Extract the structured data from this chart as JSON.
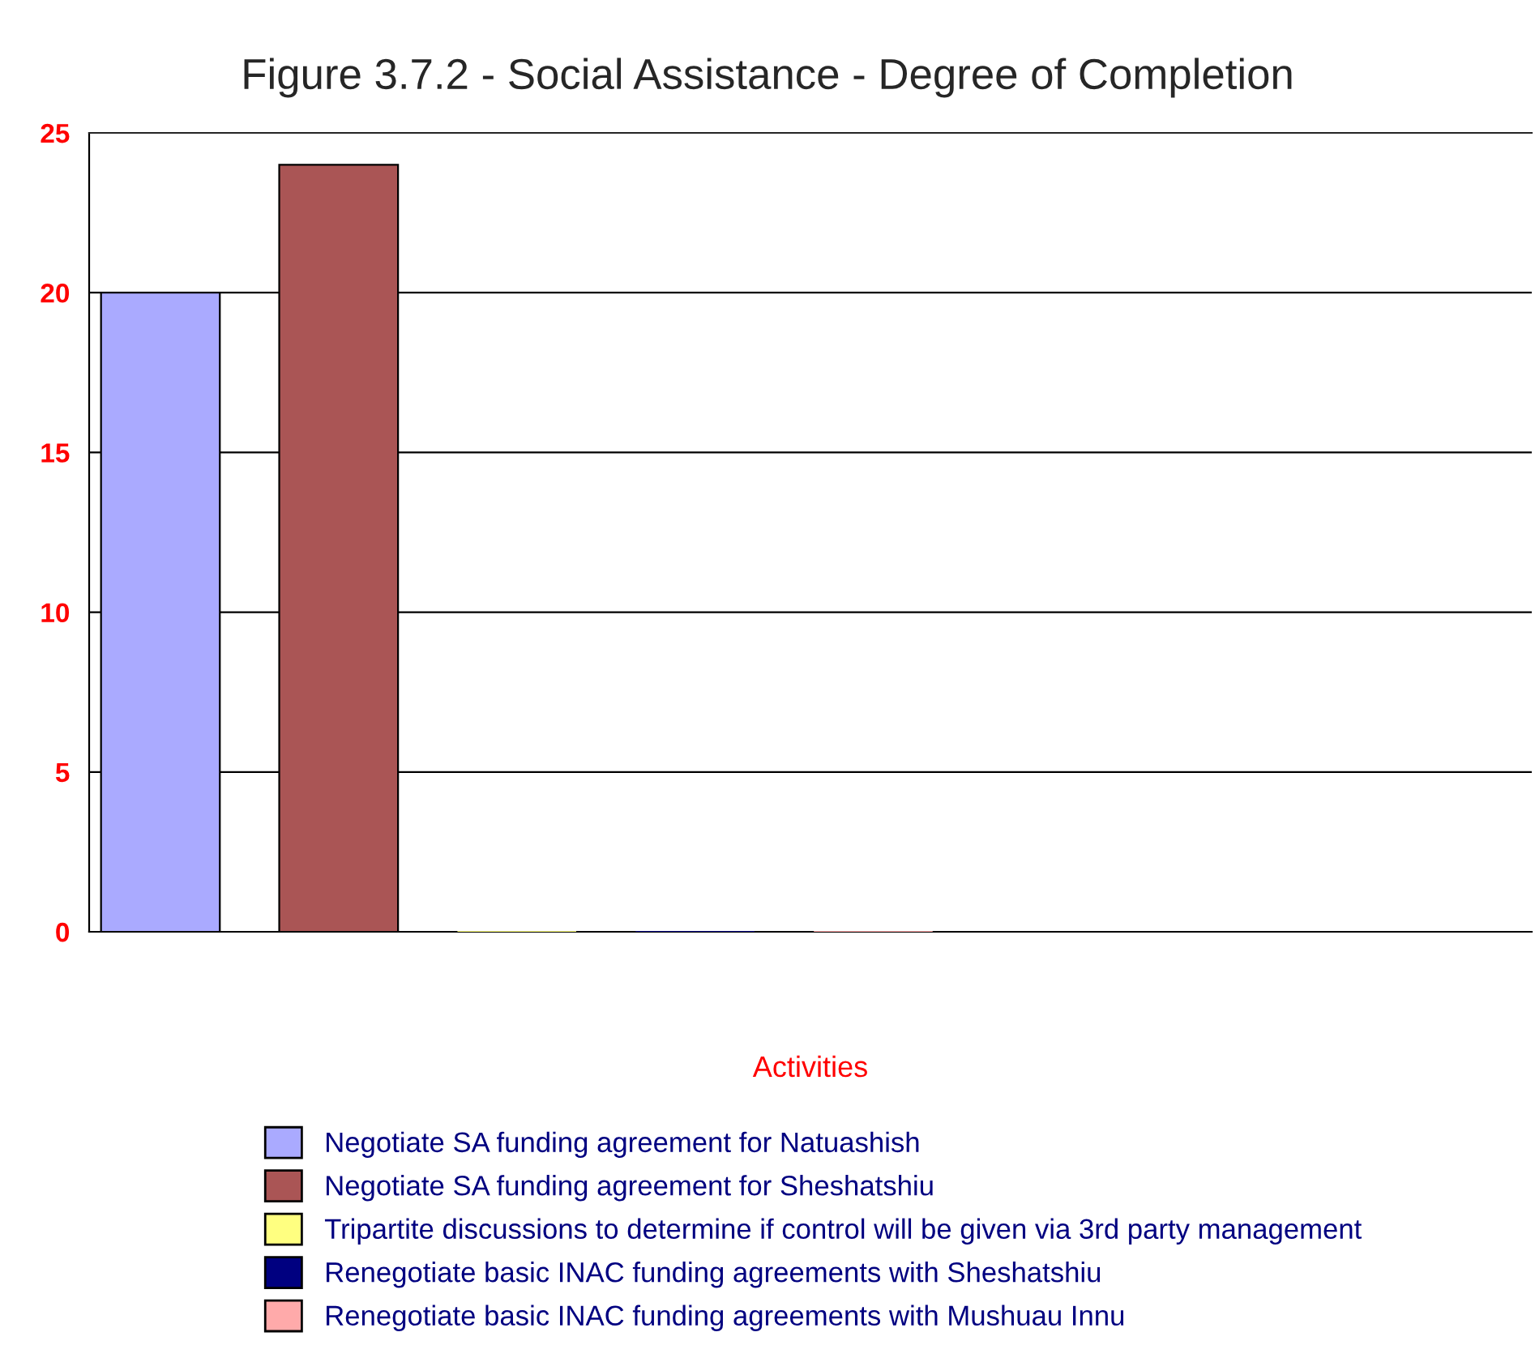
{
  "chart_data": {
    "type": "bar",
    "title": "Figure 3.7.2 - Social Assistance - Degree of Completion",
    "xlabel": "Activities",
    "categories": [
      null
    ],
    "series": [
      {
        "name": "Negotiate SA funding agreement for Natuashish",
        "color": "#aaaaff",
        "values": [
          20
        ]
      },
      {
        "name": "Negotiate SA funding agreement for Sheshatshiu",
        "color": "#aa5555",
        "values": [
          24
        ]
      },
      {
        "name": "Tripartite discussions to determine if control will be given via 3rd party management",
        "color": "#ffff80",
        "values": [
          0
        ]
      },
      {
        "name": "Renegotiate basic INAC funding agreements with Sheshatshiu",
        "color": "#000080",
        "values": [
          0
        ]
      },
      {
        "name": "Renegotiate basic INAC funding agreements with Mushuau Innu",
        "color": "#ffaaaa",
        "values": [
          0
        ]
      }
    ],
    "ylim": [
      0,
      25
    ],
    "yticks": [
      0,
      5,
      10,
      15,
      20,
      25
    ],
    "grid": "y",
    "legend": "bottom"
  }
}
